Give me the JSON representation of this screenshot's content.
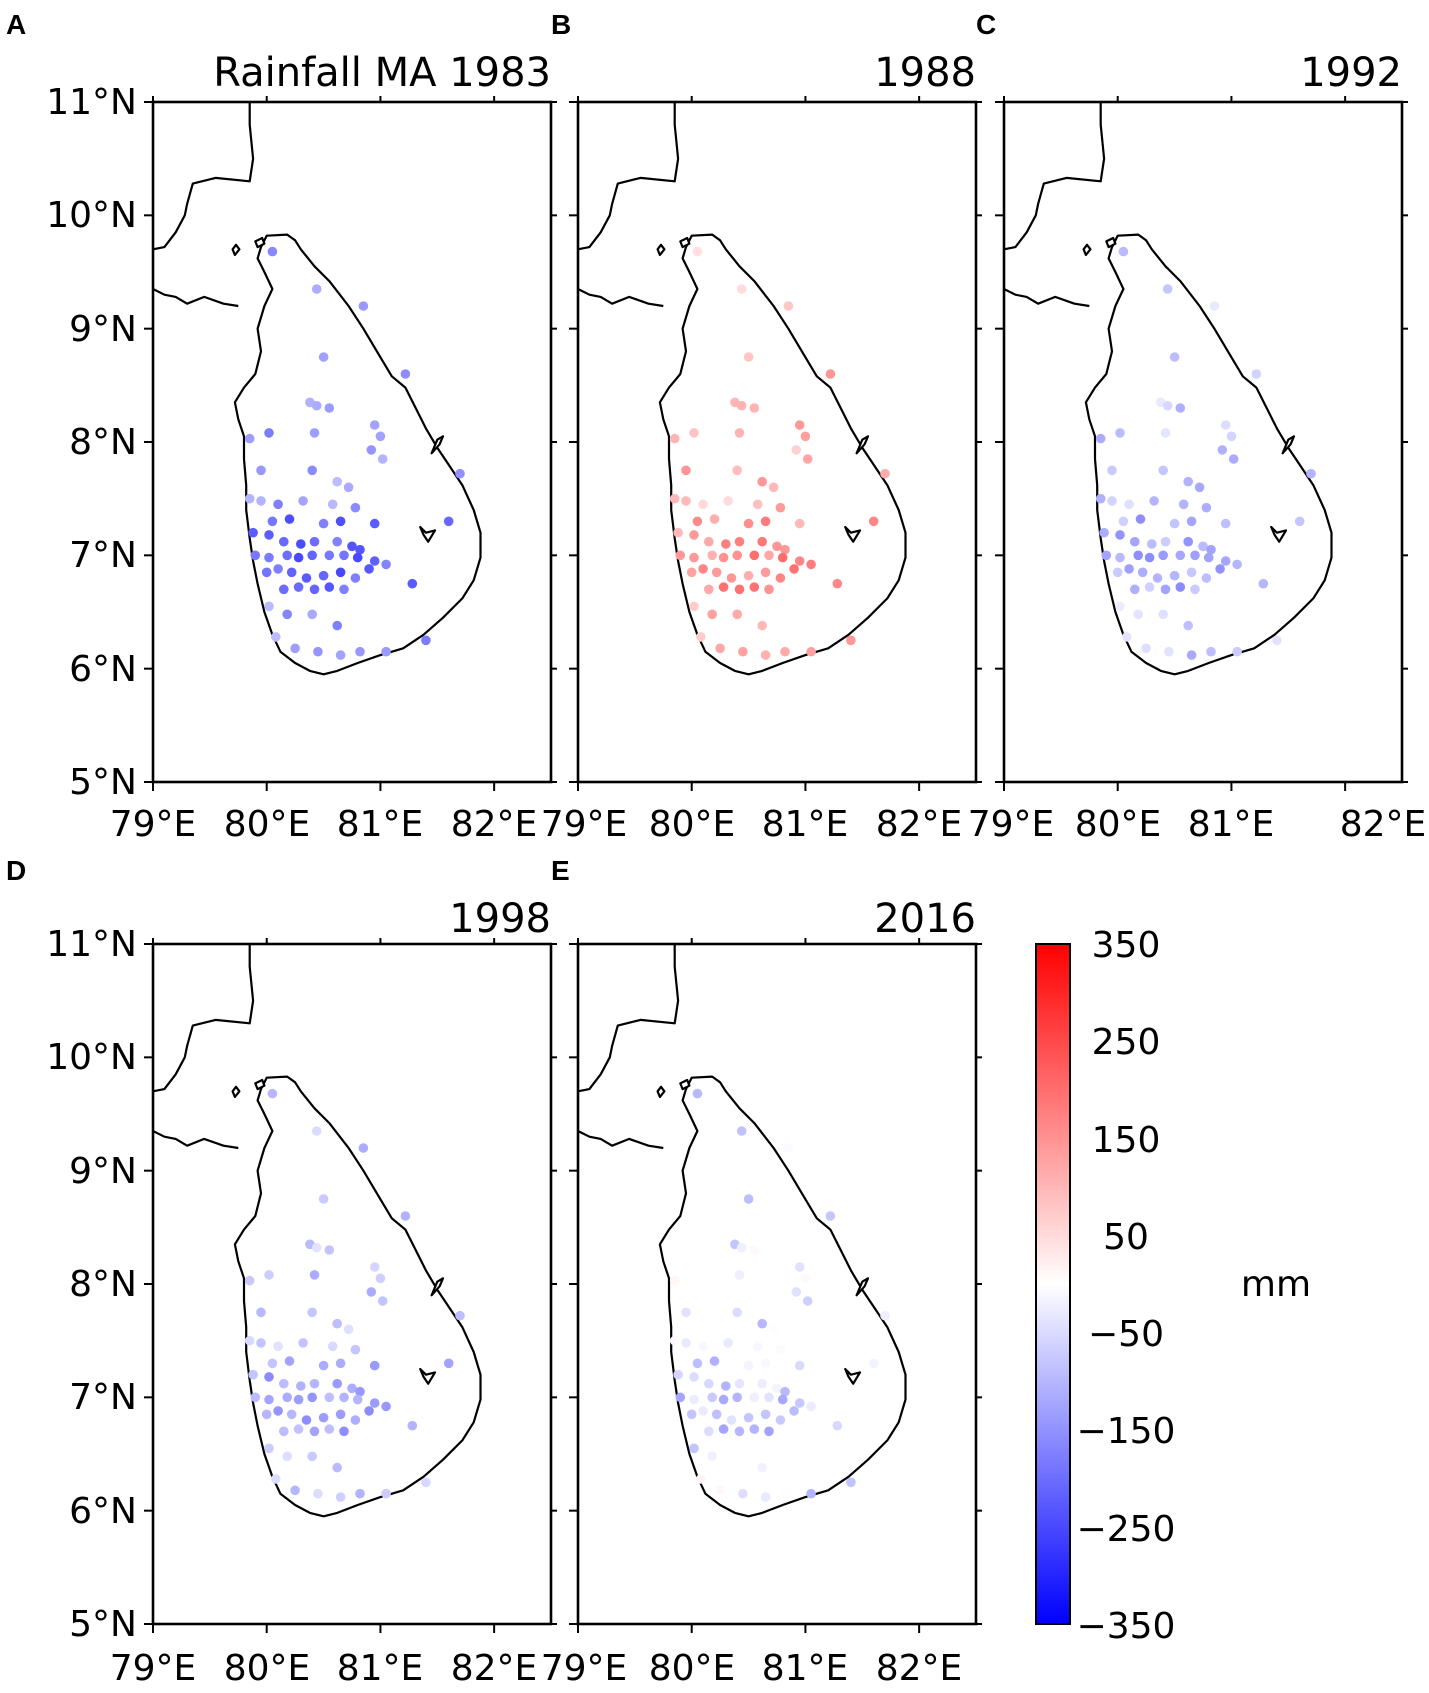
{
  "figure": {
    "variable": "Rainfall",
    "season": "MA",
    "colorbar": {
      "unit": "mm",
      "min": -350,
      "max": 350,
      "ticks": [
        "350",
        "250",
        "150",
        "50",
        "−50",
        "−150",
        "−250",
        "−350"
      ],
      "colors": {
        "low": "#0000ff",
        "mid": "#ffffff",
        "high": "#ff0000"
      }
    }
  },
  "axes": {
    "lon_ticks": [
      "79°E",
      "80°E",
      "81°E",
      "82°E"
    ],
    "lat_ticks": [
      "11°N",
      "10°N",
      "9°N",
      "8°N",
      "7°N",
      "6°N",
      "5°N"
    ],
    "lon_range": [
      79,
      82.5
    ],
    "lat_range": [
      5,
      11
    ]
  },
  "panels": [
    {
      "letter": "A",
      "title": "Rainfall  MA 1983",
      "year": 1983,
      "tendency": -170,
      "spread": 45
    },
    {
      "letter": "B",
      "title": "1988",
      "year": 1988,
      "tendency": 120,
      "spread": 55
    },
    {
      "letter": "C",
      "title": "1992",
      "year": 1992,
      "tendency": -90,
      "spread": 50
    },
    {
      "letter": "D",
      "title": "1998",
      "year": 1998,
      "tendency": -95,
      "spread": 40
    },
    {
      "letter": "E",
      "title": "2016",
      "year": 2016,
      "tendency": -55,
      "spread": 60
    }
  ]
}
